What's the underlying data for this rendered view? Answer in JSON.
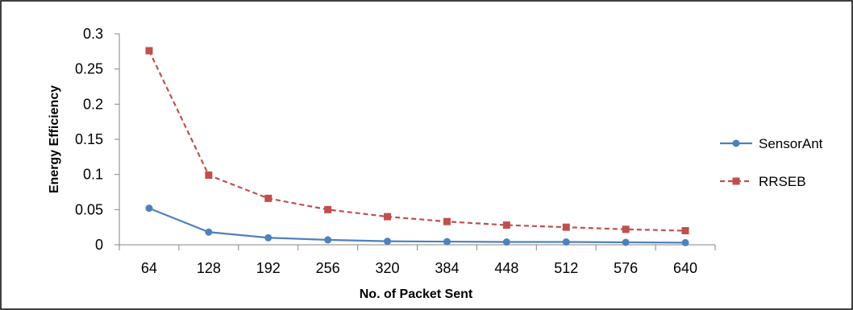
{
  "chart_data": {
    "type": "line",
    "title": "",
    "xlabel": "No. of Packet Sent",
    "ylabel": "Energy Efficiency",
    "categories": [
      "64",
      "128",
      "192",
      "256",
      "320",
      "384",
      "448",
      "512",
      "576",
      "640"
    ],
    "ylim": [
      0,
      0.3
    ],
    "yticks": [
      "0",
      "0.05",
      "0.1",
      "0.15",
      "0.2",
      "0.25",
      "0.3"
    ],
    "ytick_values": [
      0,
      0.05,
      0.1,
      0.15,
      0.2,
      0.25,
      0.3
    ],
    "grid": false,
    "legend_position": "right",
    "series": [
      {
        "name": "SensorAnt",
        "color": "#4f81bd",
        "marker": "circle",
        "line_style": "solid",
        "values": [
          0.052,
          0.018,
          0.01,
          0.007,
          0.005,
          0.0045,
          0.004,
          0.004,
          0.0035,
          0.003
        ]
      },
      {
        "name": "RRSEB",
        "color": "#c0504d",
        "marker": "square",
        "line_style": "dashed",
        "values": [
          0.276,
          0.099,
          0.066,
          0.05,
          0.04,
          0.033,
          0.028,
          0.025,
          0.022,
          0.02
        ]
      }
    ]
  }
}
